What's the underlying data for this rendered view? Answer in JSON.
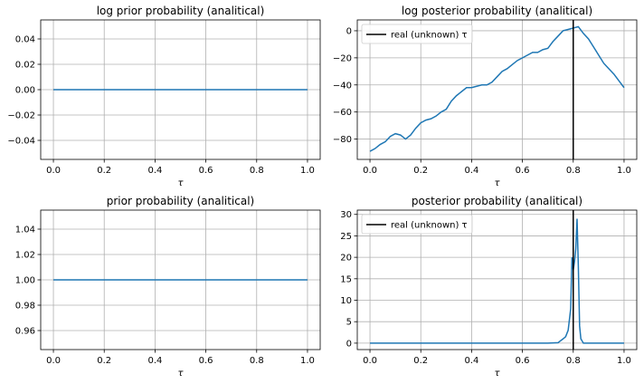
{
  "figure": {
    "background": "#ffffff"
  },
  "chart_data": [
    {
      "type": "line",
      "title": "log prior probability (analitical)",
      "xlabel": "τ",
      "ylabel": "",
      "xlim": [
        -0.05,
        1.05
      ],
      "ylim": [
        -0.055,
        0.055
      ],
      "xticks": [
        "0.0",
        "0.2",
        "0.4",
        "0.6",
        "0.8",
        "1.0"
      ],
      "yticks": [
        "0.04",
        "0.02",
        "0.00",
        "−0.02",
        "−0.04"
      ],
      "grid": true,
      "series": [
        {
          "color": "#1f77b4",
          "x": [
            0.0,
            1.0
          ],
          "y": [
            0.0,
            0.0
          ]
        }
      ]
    },
    {
      "type": "line",
      "title": "log posterior probability (analitical)",
      "xlabel": "τ",
      "ylabel": "",
      "xlim": [
        -0.05,
        1.05
      ],
      "ylim": [
        -95,
        8
      ],
      "xticks": [
        "0.0",
        "0.2",
        "0.4",
        "0.6",
        "0.8",
        "1.0"
      ],
      "yticks": [
        "0",
        "−20",
        "−40",
        "−60",
        "−80"
      ],
      "grid": true,
      "legend": {
        "position": "top-left",
        "entries": [
          {
            "label": "real (unknown) τ",
            "color": "#000000"
          }
        ]
      },
      "vline": {
        "x": 0.8,
        "color": "#000000"
      },
      "series": [
        {
          "color": "#1f77b4",
          "x": [
            0.0,
            0.02,
            0.04,
            0.06,
            0.08,
            0.1,
            0.12,
            0.14,
            0.16,
            0.18,
            0.2,
            0.22,
            0.24,
            0.26,
            0.28,
            0.3,
            0.32,
            0.34,
            0.36,
            0.38,
            0.4,
            0.42,
            0.44,
            0.46,
            0.48,
            0.5,
            0.52,
            0.54,
            0.56,
            0.58,
            0.6,
            0.62,
            0.64,
            0.66,
            0.68,
            0.7,
            0.72,
            0.74,
            0.76,
            0.78,
            0.8,
            0.82,
            0.84,
            0.86,
            0.88,
            0.9,
            0.92,
            0.94,
            0.96,
            0.98,
            1.0
          ],
          "y": [
            -89,
            -87,
            -84,
            -82,
            -78,
            -76,
            -77,
            -80,
            -77,
            -72,
            -68,
            -66,
            -65,
            -63,
            -60,
            -58,
            -52,
            -48,
            -45,
            -42,
            -42,
            -41,
            -40,
            -40,
            -38,
            -34,
            -30,
            -28,
            -25,
            -22,
            -20,
            -18,
            -16,
            -16,
            -14,
            -13,
            -8,
            -4,
            0,
            1,
            2,
            3,
            -2,
            -6,
            -12,
            -18,
            -24,
            -28,
            -32,
            -37,
            -42
          ]
        }
      ]
    },
    {
      "type": "line",
      "title": "prior probability (analitical)",
      "xlabel": "τ",
      "ylabel": "",
      "xlim": [
        -0.05,
        1.05
      ],
      "ylim": [
        0.945,
        1.055
      ],
      "xticks": [
        "0.0",
        "0.2",
        "0.4",
        "0.6",
        "0.8",
        "1.0"
      ],
      "yticks": [
        "1.04",
        "1.02",
        "1.00",
        "0.98",
        "0.96"
      ],
      "grid": true,
      "series": [
        {
          "color": "#1f77b4",
          "x": [
            0.0,
            1.0
          ],
          "y": [
            1.0,
            1.0
          ]
        }
      ]
    },
    {
      "type": "line",
      "title": "posterior probability (analitical)",
      "xlabel": "τ",
      "ylabel": "",
      "xlim": [
        -0.05,
        1.05
      ],
      "ylim": [
        -1.5,
        31
      ],
      "xticks": [
        "0.0",
        "0.2",
        "0.4",
        "0.6",
        "0.8",
        "1.0"
      ],
      "yticks": [
        "30",
        "25",
        "20",
        "15",
        "10",
        "5",
        "0"
      ],
      "grid": true,
      "legend": {
        "position": "top-left",
        "entries": [
          {
            "label": "real (unknown) τ",
            "color": "#000000"
          }
        ]
      },
      "vline": {
        "x": 0.8,
        "color": "#000000"
      },
      "series": [
        {
          "color": "#1f77b4",
          "x": [
            0.0,
            0.7,
            0.74,
            0.76,
            0.77,
            0.78,
            0.79,
            0.795,
            0.8,
            0.805,
            0.81,
            0.815,
            0.82,
            0.825,
            0.83,
            0.84,
            0.86,
            1.0
          ],
          "y": [
            0,
            0,
            0.1,
            1,
            1.5,
            3,
            8,
            20,
            17,
            19,
            22,
            29,
            18,
            4,
            1,
            0,
            0,
            0
          ]
        }
      ]
    }
  ]
}
